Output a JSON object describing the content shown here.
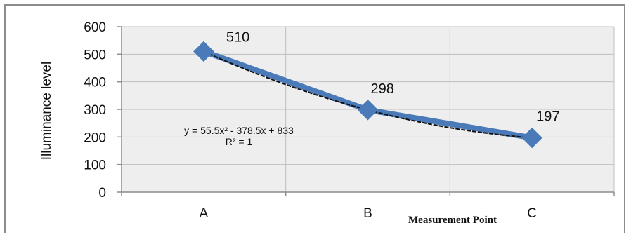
{
  "chart_data": {
    "type": "line",
    "categories": [
      "A",
      "B",
      "C"
    ],
    "series": [
      {
        "values": [
          510,
          298,
          197
        ],
        "color": "#4a7ab8"
      }
    ],
    "data_labels": [
      "510",
      "298",
      "197"
    ],
    "ylabel": "Illuminance  level",
    "xlabel": "Measurement Point",
    "ylim": [
      0,
      600
    ],
    "yticks": [
      0,
      100,
      200,
      300,
      400,
      500,
      600
    ],
    "ytick_labels": [
      "0",
      "100",
      "200",
      "300",
      "400",
      "500",
      "600"
    ],
    "grid": true,
    "trendline": {
      "type": "polynomial",
      "order": 2,
      "coefficients": [
        55.5,
        -378.5,
        833
      ],
      "equation": "y = 55.5x² - 378.5x + 833",
      "r_squared": "R² = 1",
      "color": "#111111"
    },
    "plot_background": "#eeeeee",
    "gridline_color": "#bfbfbf",
    "marker": "diamond"
  }
}
